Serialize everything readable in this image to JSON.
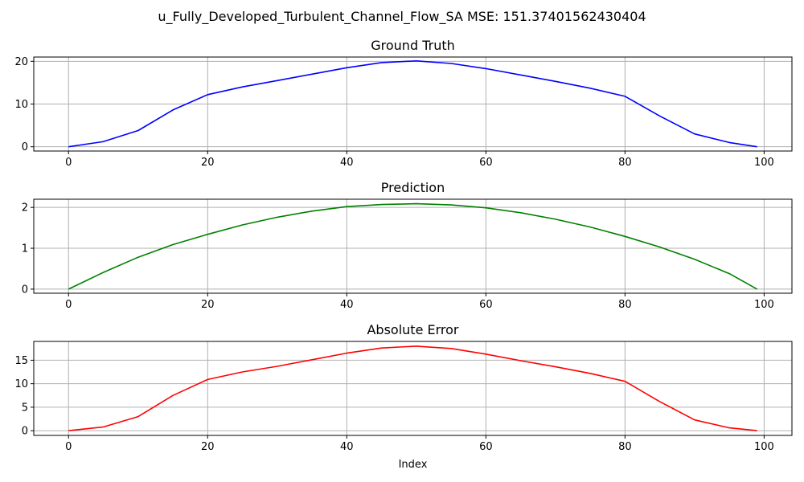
{
  "figure": {
    "suptitle": "u_Fully_Developed_Turbulent_Channel_Flow_SA MSE: 151.37401562430404"
  },
  "chart_data": [
    {
      "type": "line",
      "title": "Ground Truth",
      "xlabel": "",
      "ylabel": "",
      "xlim": [
        -5,
        104
      ],
      "ylim": [
        -1,
        21
      ],
      "xticks": [
        0,
        20,
        40,
        60,
        80,
        100
      ],
      "yticks": [
        0,
        10,
        20
      ],
      "grid": true,
      "color": "#0000ff",
      "series": [
        {
          "x": [
            0,
            5,
            10,
            15,
            20,
            25,
            30,
            35,
            40,
            45,
            50,
            55,
            60,
            65,
            70,
            75,
            80,
            85,
            90,
            95,
            99
          ],
          "y": [
            0,
            1.2,
            3.8,
            8.6,
            12.2,
            14.0,
            15.5,
            17.0,
            18.5,
            19.7,
            20.1,
            19.5,
            18.3,
            16.8,
            15.3,
            13.7,
            11.8,
            7.2,
            3.0,
            1.0,
            0
          ]
        }
      ]
    },
    {
      "type": "line",
      "title": "Prediction",
      "xlabel": "",
      "ylabel": "",
      "xlim": [
        -5,
        104
      ],
      "ylim": [
        -0.1,
        2.2
      ],
      "xticks": [
        0,
        20,
        40,
        60,
        80,
        100
      ],
      "yticks": [
        0,
        1,
        2
      ],
      "grid": true,
      "color": "#008000",
      "series": [
        {
          "x": [
            0,
            5,
            10,
            15,
            20,
            25,
            30,
            35,
            40,
            45,
            50,
            55,
            60,
            65,
            70,
            75,
            80,
            85,
            90,
            95,
            99
          ],
          "y": [
            0,
            0.41,
            0.78,
            1.09,
            1.34,
            1.57,
            1.76,
            1.91,
            2.02,
            2.07,
            2.09,
            2.06,
            1.99,
            1.87,
            1.71,
            1.52,
            1.29,
            1.03,
            0.73,
            0.38,
            0
          ]
        }
      ]
    },
    {
      "type": "line",
      "title": "Absolute Error",
      "xlabel": "Index",
      "ylabel": "",
      "xlim": [
        -5,
        104
      ],
      "ylim": [
        -1,
        19
      ],
      "xticks": [
        0,
        20,
        40,
        60,
        80,
        100
      ],
      "yticks": [
        0,
        5,
        10,
        15
      ],
      "grid": true,
      "color": "#ff0000",
      "series": [
        {
          "x": [
            0,
            5,
            10,
            15,
            20,
            25,
            30,
            35,
            40,
            45,
            50,
            55,
            60,
            65,
            70,
            75,
            80,
            85,
            90,
            95,
            99
          ],
          "y": [
            0,
            0.8,
            3.0,
            7.5,
            10.9,
            12.5,
            13.7,
            15.1,
            16.5,
            17.6,
            18.0,
            17.5,
            16.3,
            14.9,
            13.6,
            12.2,
            10.5,
            6.2,
            2.3,
            0.6,
            0
          ]
        }
      ]
    }
  ]
}
